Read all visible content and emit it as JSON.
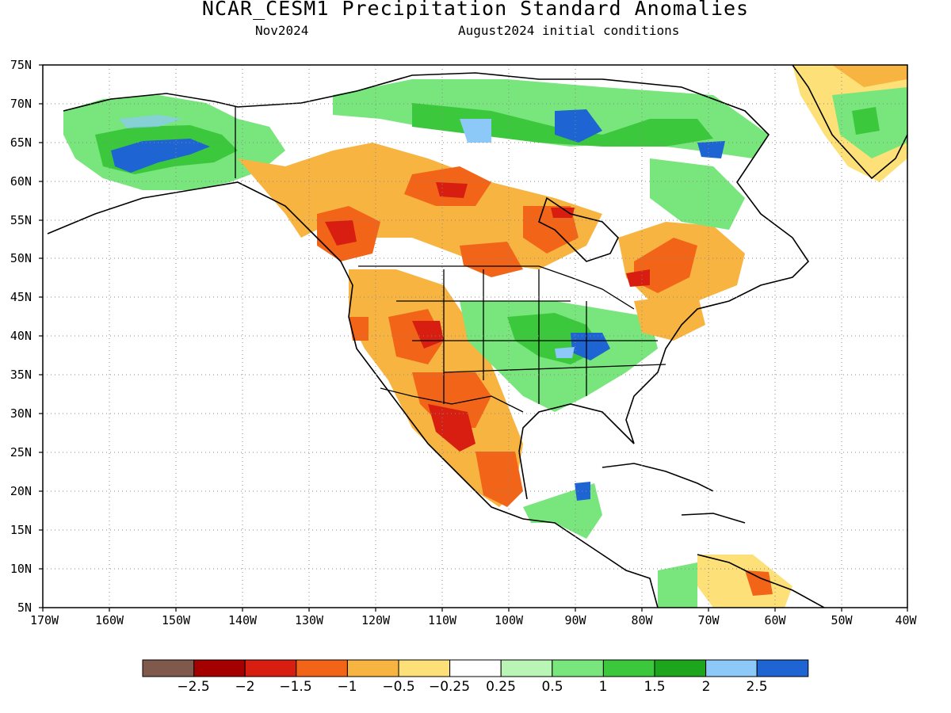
{
  "title": "NCAR_CESM1 Precipitation Standard Anomalies",
  "subtitle_left": "Nov2024",
  "subtitle_right": "August2024 initial conditions",
  "lat_labels": [
    "75N",
    "70N",
    "65N",
    "60N",
    "55N",
    "50N",
    "45N",
    "40N",
    "35N",
    "30N",
    "25N",
    "20N",
    "15N",
    "10N",
    "5N"
  ],
  "lon_labels": [
    "170W",
    "160W",
    "150W",
    "140W",
    "130W",
    "120W",
    "110W",
    "100W",
    "90W",
    "80W",
    "70W",
    "60W",
    "50W",
    "40W"
  ],
  "colorbar": {
    "colors": [
      "#7f5a4c",
      "#a50000",
      "#d81e10",
      "#f26418",
      "#f8b441",
      "#fde178",
      "#ffffff",
      "#b9f5b5",
      "#78e67c",
      "#3cc83c",
      "#1ea51e",
      "#8cc8f8",
      "#1e64d2"
    ],
    "labels": [
      "−2.5",
      "−2",
      "−1.5",
      "−1",
      "−0.5",
      "−0.25",
      "0.25",
      "0.5",
      "1",
      "1.5",
      "2",
      "2.5"
    ]
  }
}
